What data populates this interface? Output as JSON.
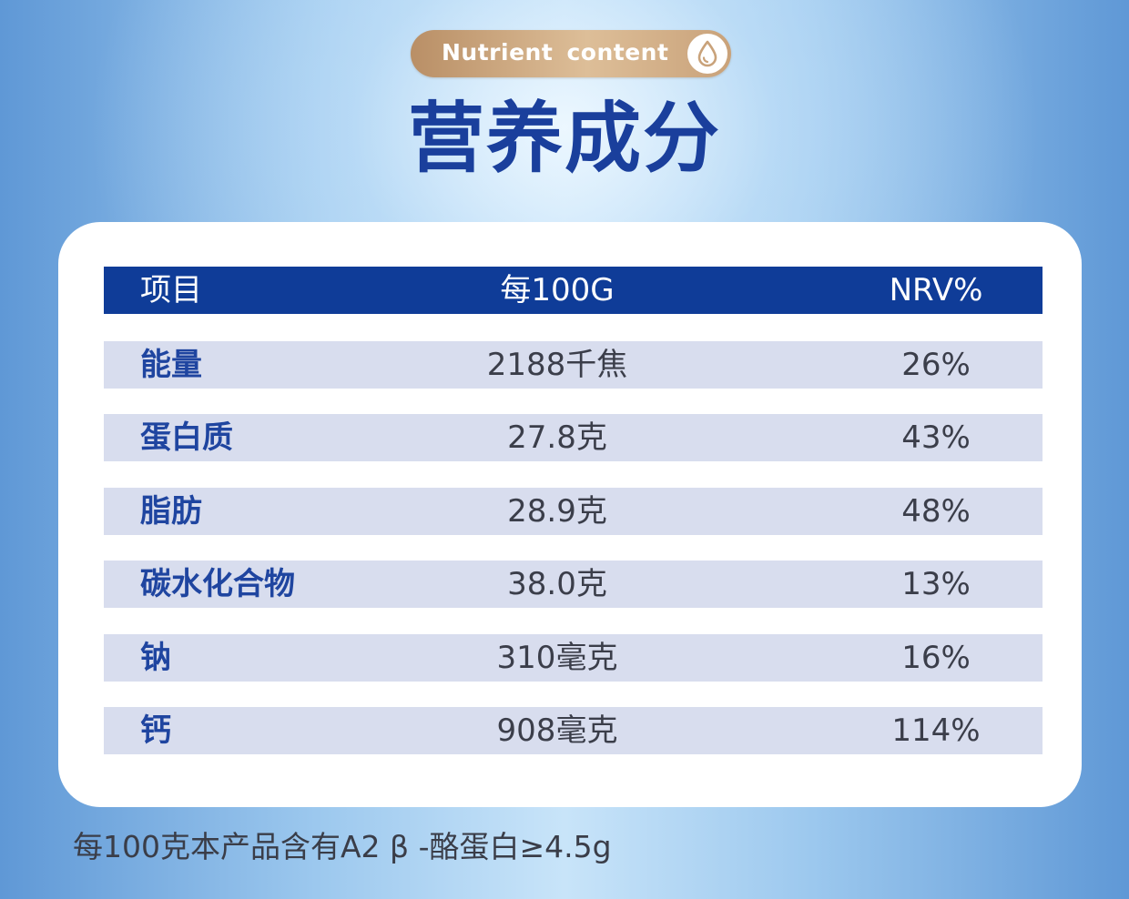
{
  "badge": {
    "text": "Nutrient  content",
    "icon": "water-drop-icon"
  },
  "title": "营养成分",
  "table": {
    "headers": [
      "项目",
      "每100G",
      "NRV%"
    ],
    "rows": [
      {
        "name": "能量",
        "per100g": "2188千焦",
        "nrv": "26%"
      },
      {
        "name": "蛋白质",
        "per100g": "27.8克",
        "nrv": "43%"
      },
      {
        "name": "脂肪",
        "per100g": "28.9克",
        "nrv": "48%"
      },
      {
        "name": "碳水化合物",
        "per100g": "38.0克",
        "nrv": "13%"
      },
      {
        "name": "钠",
        "per100g": "310毫克",
        "nrv": "16%"
      },
      {
        "name": "钙",
        "per100g": "908毫克",
        "nrv": "114%"
      }
    ]
  },
  "footnote": "每100克本产品含有A2 β -酪蛋白≥4.5g",
  "colors": {
    "header_bg": "#0f3c98",
    "row_bg": "#d8ddee",
    "title": "#1a3f9c",
    "badge_gold": "#d2ad85"
  }
}
